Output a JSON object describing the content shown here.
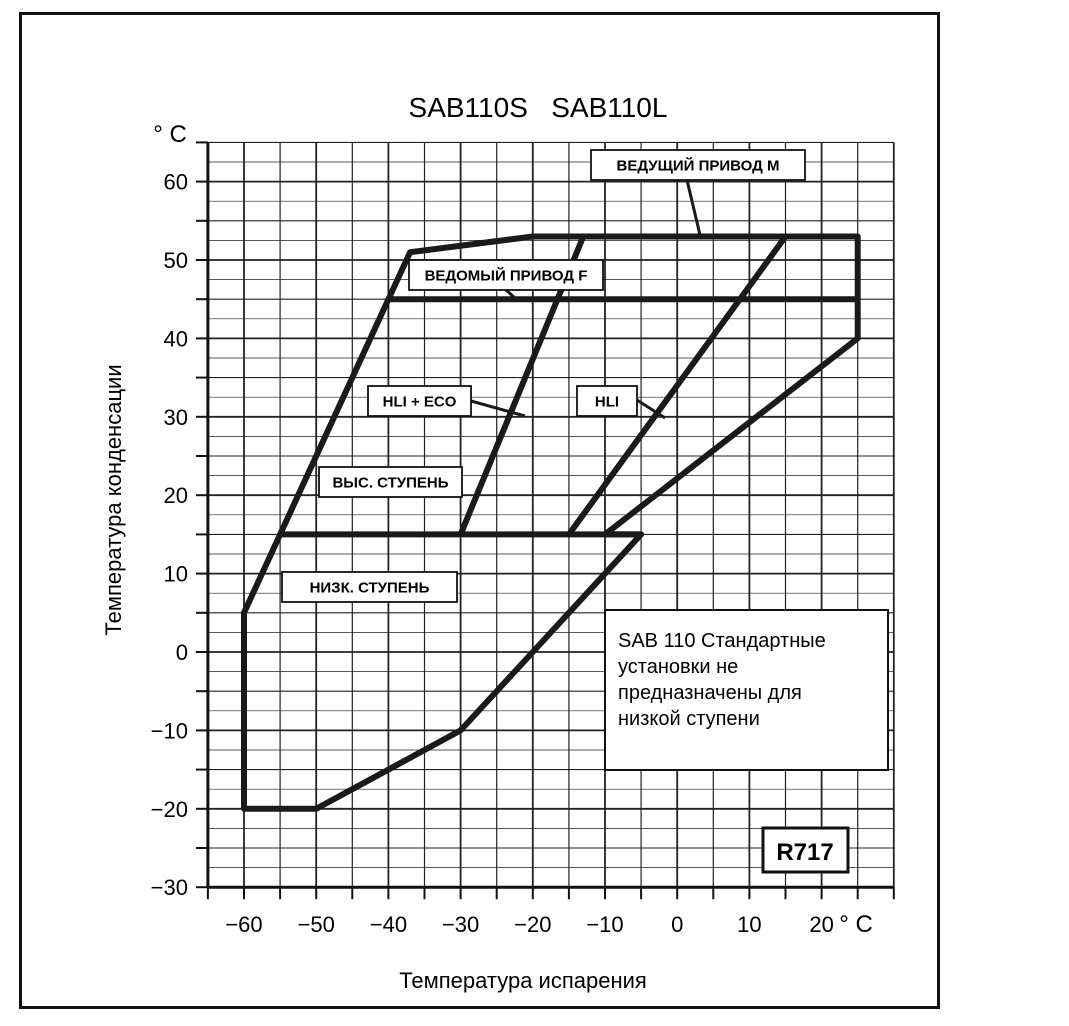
{
  "chart_data": {
    "type": "line",
    "title": "SAB110S   SAB110L",
    "xlabel": "Температура испарения",
    "ylabel": "Температура конденсации",
    "x_unit": "° C",
    "y_unit": "° C",
    "xlim": [
      -65,
      30
    ],
    "ylim": [
      -30,
      65
    ],
    "grid": true,
    "x_ticks": [
      -60,
      -50,
      -40,
      -30,
      -20,
      -10,
      0,
      10,
      20
    ],
    "x_tick_labels": [
      "−60",
      "−50",
      "−40",
      "−30",
      "−20",
      "−10",
      "0",
      "10",
      "20"
    ],
    "y_ticks": [
      -30,
      -20,
      -10,
      0,
      10,
      20,
      30,
      40,
      50,
      60
    ],
    "y_tick_labels": [
      "−30",
      "−20",
      "−10",
      "0",
      "10",
      "20",
      "30",
      "40",
      "50",
      "60"
    ],
    "series": [
      {
        "key": "outer_envelope",
        "points": [
          [
            -60,
            5
          ],
          [
            -37,
            51
          ],
          [
            -20,
            53
          ],
          [
            0,
            53
          ],
          [
            25,
            53
          ],
          [
            25,
            40
          ],
          [
            -10,
            15
          ],
          [
            -5,
            15
          ],
          [
            -20,
            0
          ],
          [
            -30,
            -10
          ],
          [
            -40,
            -15
          ],
          [
            -50,
            -20
          ],
          [
            -60,
            -20
          ],
          [
            -60,
            5
          ]
        ]
      },
      {
        "key": "vedomy_line",
        "points": [
          [
            -40,
            45
          ],
          [
            25,
            45
          ]
        ]
      },
      {
        "key": "low_stage_line",
        "points": [
          [
            -55,
            15
          ],
          [
            -5,
            15
          ]
        ]
      },
      {
        "key": "hli_eco_line",
        "points": [
          [
            -30,
            15
          ],
          [
            -13,
            53
          ]
        ]
      },
      {
        "key": "hli_line",
        "points": [
          [
            -15,
            15
          ],
          [
            15,
            53
          ]
        ]
      }
    ],
    "annotations": [
      {
        "key": "vedushchy",
        "text": "ВЕДУЩИЙ ПРИВОД М"
      },
      {
        "key": "vedomy",
        "text": "ВЕДОМЫЙ ПРИВОД F"
      },
      {
        "key": "hli_eco",
        "text": "HLI + ECO"
      },
      {
        "key": "hli",
        "text": "HLI"
      },
      {
        "key": "vys",
        "text": "ВЫС. СТУПЕНЬ"
      },
      {
        "key": "nizk",
        "text": "НИЗК. СТУПЕНЬ"
      }
    ],
    "note": [
      "SAB 110 Стандартные",
      "установки не",
      "предназначены для",
      "низкой ступени"
    ],
    "refrigerant": "R717"
  }
}
